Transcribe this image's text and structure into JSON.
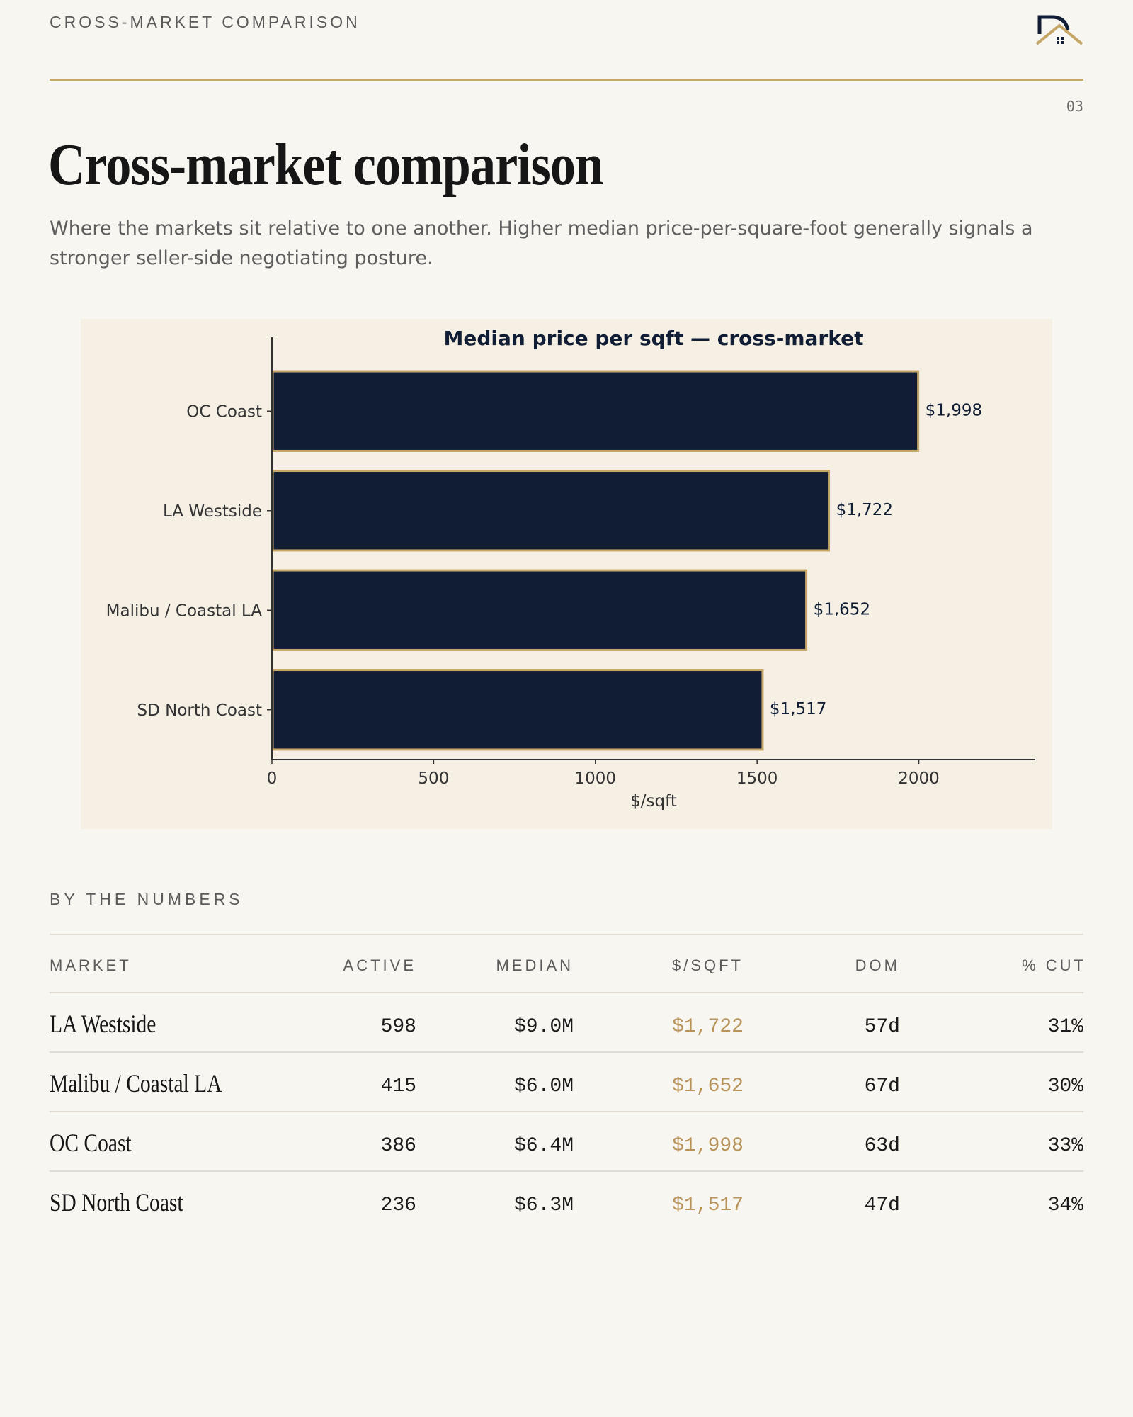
{
  "header": {
    "label": "CROSS-MARKET COMPARISON",
    "page_number": "03"
  },
  "page_title": "Cross-market comparison",
  "intro": "Where the markets sit relative to one another. Higher median price-per-square-foot generally signals a stronger seller-side negotiating posture.",
  "colors": {
    "background": "#f8f6f1",
    "navy": "#101d35",
    "gold": "#c6a667",
    "accent_text": "#b7935a",
    "chart_panel": "#f5efe4"
  },
  "logo_icon": "house-logo-icon",
  "chart_data": {
    "type": "bar",
    "orientation": "horizontal",
    "title": "Median price per sqft — cross-market",
    "xlabel": "$/sqft",
    "ylabel": "",
    "categories": [
      "OC Coast",
      "LA Westside",
      "Malibu / Coastal LA",
      "SD North Coast"
    ],
    "values": [
      1998,
      1722,
      1652,
      1517
    ],
    "data_labels": [
      "$1,998",
      "$1,722",
      "$1,652",
      "$1,517"
    ],
    "xlim": [
      0,
      2360
    ],
    "xticks": [
      0,
      500,
      1000,
      1500,
      2000
    ],
    "grid": false
  },
  "table": {
    "section_label": "BY THE NUMBERS",
    "headers": {
      "market": "MARKET",
      "active": "ACTIVE",
      "median": "MEDIAN",
      "ppsf": "$/SQFT",
      "dom": "DOM",
      "cut": "% CUT"
    },
    "rows": [
      {
        "market": "LA Westside",
        "active": "598",
        "median": "$9.0M",
        "ppsf": "$1,722",
        "dom": "57d",
        "cut": "31%"
      },
      {
        "market": "Malibu / Coastal LA",
        "active": "415",
        "median": "$6.0M",
        "ppsf": "$1,652",
        "dom": "67d",
        "cut": "30%"
      },
      {
        "market": "OC Coast",
        "active": "386",
        "median": "$6.4M",
        "ppsf": "$1,998",
        "dom": "63d",
        "cut": "33%"
      },
      {
        "market": "SD North Coast",
        "active": "236",
        "median": "$6.3M",
        "ppsf": "$1,517",
        "dom": "47d",
        "cut": "34%"
      }
    ]
  }
}
